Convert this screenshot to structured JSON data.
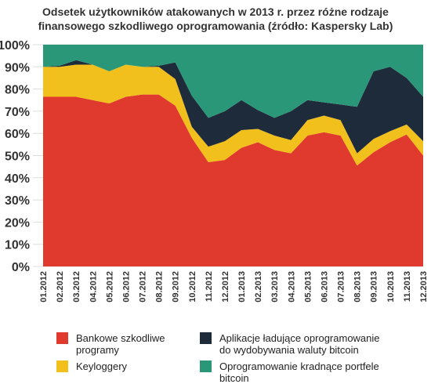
{
  "chart_data": {
    "type": "stacked-area-100",
    "title": "Odsetek użytkowników atakowanych w 2013 r. przez różne rodzaje finansowego szkodliwego oprogramowania (źródło: Kaspersky Lab)",
    "categories": [
      "01.2012",
      "02.2012",
      "03.2012",
      "04.2012",
      "05.2012",
      "06.2012",
      "07.2012",
      "08.2012",
      "09.2012",
      "10.2012",
      "11.2012",
      "12.2012",
      "01.2013",
      "02.2013",
      "03.2013",
      "04.2013",
      "05.2013",
      "06.2013",
      "07.2013",
      "08.2013",
      "09.2013",
      "10.2013",
      "11.2013",
      "12.2013"
    ],
    "series": [
      {
        "name": "Bankowe szkodliwe programy",
        "color": "#e0392d",
        "values": [
          76.5,
          76.5,
          76.5,
          75,
          73.5,
          76.5,
          77.5,
          77.5,
          72.5,
          58,
          47,
          48,
          53.5,
          56,
          52.5,
          51,
          59,
          60.5,
          59,
          45.5,
          51.5,
          56,
          59.5,
          50
        ]
      },
      {
        "name": "Keyloggery",
        "color": "#f2c01c",
        "values": [
          13.5,
          13.5,
          14.5,
          16,
          14.5,
          14.5,
          12.5,
          12.5,
          12,
          5,
          7,
          8.5,
          8,
          6,
          6.5,
          6,
          7,
          7.5,
          7,
          5.5,
          6,
          5,
          4.5,
          6.5
        ]
      },
      {
        "name": "Aplikacje ładujące oprogramowanie do wydobywania waluty bitcoin",
        "color": "#1e2b3b",
        "values": [
          0,
          0.5,
          2,
          0,
          0,
          0,
          0,
          0.5,
          7.5,
          14,
          13,
          13.5,
          13.5,
          8.5,
          8,
          13,
          9,
          6,
          7,
          21,
          30.5,
          29,
          21,
          20
        ]
      },
      {
        "name": "Oprogramowanie kradnące portfele bitcoin",
        "color": "#2a9878",
        "values": [
          10,
          9.5,
          7,
          9,
          12,
          9,
          10,
          9.5,
          8,
          23,
          33,
          30,
          25,
          29.5,
          33,
          30,
          25,
          26,
          27,
          28,
          12,
          10,
          15,
          23.5
        ]
      }
    ],
    "ylim": [
      0,
      100
    ],
    "yticks": [
      {
        "value": 0,
        "label": "0%"
      },
      {
        "value": 10,
        "label": "10%"
      },
      {
        "value": 20,
        "label": "20%"
      },
      {
        "value": 30,
        "label": "30%"
      },
      {
        "value": 40,
        "label": "40%"
      },
      {
        "value": 50,
        "label": "50%"
      },
      {
        "value": 60,
        "label": "60%"
      },
      {
        "value": 70,
        "label": "70%"
      },
      {
        "value": 80,
        "label": "80%"
      },
      {
        "value": 90,
        "label": "90%"
      },
      {
        "value": 100,
        "label": "100%"
      }
    ],
    "grid": true
  }
}
